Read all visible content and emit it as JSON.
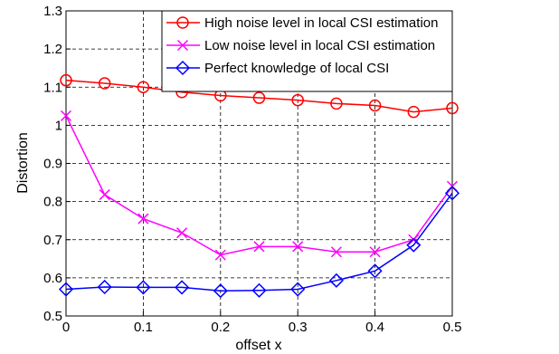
{
  "chart_data": {
    "type": "line",
    "xlabel": "offset x",
    "ylabel": "Distortion",
    "xlim": [
      0,
      0.5
    ],
    "ylim": [
      0.5,
      1.3
    ],
    "xticks": [
      "0",
      "0.1",
      "0.2",
      "0.3",
      "0.4",
      "0.5"
    ],
    "yticks": [
      "0.5",
      "0.6",
      "0.7",
      "0.8",
      "0.9",
      "1",
      "1.1",
      "1.2",
      "1.3"
    ],
    "grid": true,
    "legend_position": "top-right",
    "x": [
      0,
      0.05,
      0.1,
      0.15,
      0.2,
      0.25,
      0.3,
      0.35,
      0.4,
      0.45,
      0.5
    ],
    "series": [
      {
        "name": "High noise level in local CSI estimation",
        "color": "#ff0000",
        "marker": "circle",
        "values": [
          1.118,
          1.11,
          1.1,
          1.087,
          1.078,
          1.072,
          1.066,
          1.057,
          1.052,
          1.035,
          1.045
        ]
      },
      {
        "name": "Low noise level in local CSI estimation",
        "color": "#ff00ff",
        "marker": "x",
        "values": [
          1.025,
          0.818,
          0.755,
          0.718,
          0.66,
          0.682,
          0.682,
          0.668,
          0.668,
          0.7,
          0.84
        ]
      },
      {
        "name": "Perfect knowledge of local CSI",
        "color": "#0000ff",
        "marker": "diamond",
        "values": [
          0.57,
          0.576,
          0.575,
          0.575,
          0.566,
          0.567,
          0.57,
          0.593,
          0.618,
          0.686,
          0.822
        ]
      }
    ]
  }
}
